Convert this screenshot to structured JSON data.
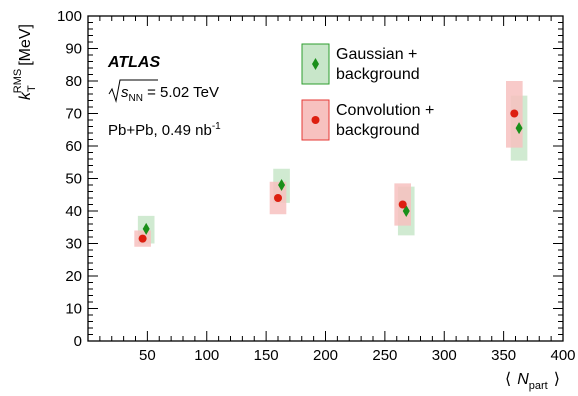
{
  "chart_data": {
    "type": "scatter",
    "xlabel_symbol": "N",
    "xlabel_subscript": "part",
    "xlabel_left_bracket": "⟨",
    "xlabel_right_bracket": "⟩",
    "ylabel_symbol": "k",
    "ylabel_subscript": "T",
    "ylabel_superscript": "RMS",
    "ylabel_unit": "[MeV]",
    "xlim": [
      0,
      400
    ],
    "ylim": [
      0,
      100
    ],
    "xticks": [
      50,
      100,
      150,
      200,
      250,
      300,
      350,
      400
    ],
    "yticks": [
      0,
      10,
      20,
      30,
      40,
      50,
      60,
      70,
      80,
      90,
      100
    ],
    "x_tick_labels": [
      "50",
      "100",
      "150",
      "200",
      "250",
      "300",
      "350",
      "400"
    ],
    "y_tick_labels": [
      "0",
      "10",
      "20",
      "30",
      "40",
      "50",
      "60",
      "70",
      "80",
      "90",
      "100"
    ],
    "grid": false,
    "legend_position": "top-center",
    "annotations": {
      "experiment": "ATLAS",
      "energy_sqrt": "s",
      "energy_subscript": "NN",
      "energy_value": " = 5.02 TeV",
      "system": "Pb+Pb, 0.49 nb",
      "system_exponent": "-1"
    },
    "series": [
      {
        "legend_line1": "Gaussian +",
        "legend_line2": "background",
        "marker": "diamond",
        "color": "#1a8f1a",
        "box_fill": "#c8e6c9",
        "box_stroke": "#2e9e2e",
        "x": [
          49,
          163,
          268,
          363
        ],
        "y": [
          34.5,
          48,
          40,
          65.5
        ],
        "sys_x_half": [
          7,
          7,
          7,
          7
        ],
        "sys_y_low": [
          30,
          42.5,
          32.5,
          55.5
        ],
        "sys_y_high": [
          38.5,
          53,
          47.5,
          75.5
        ]
      },
      {
        "legend_line1": "Convolution +",
        "legend_line2": "background",
        "marker": "circle",
        "color": "#dd1f10",
        "box_fill": "#f7c1bf",
        "box_stroke": "#e53935",
        "x": [
          46,
          160,
          265,
          359
        ],
        "y": [
          31.5,
          44,
          42,
          70
        ],
        "sys_x_half": [
          7,
          7,
          7,
          7
        ],
        "sys_y_low": [
          29,
          39,
          35.5,
          59.5
        ],
        "sys_y_high": [
          34,
          49,
          48.5,
          80
        ]
      }
    ]
  }
}
